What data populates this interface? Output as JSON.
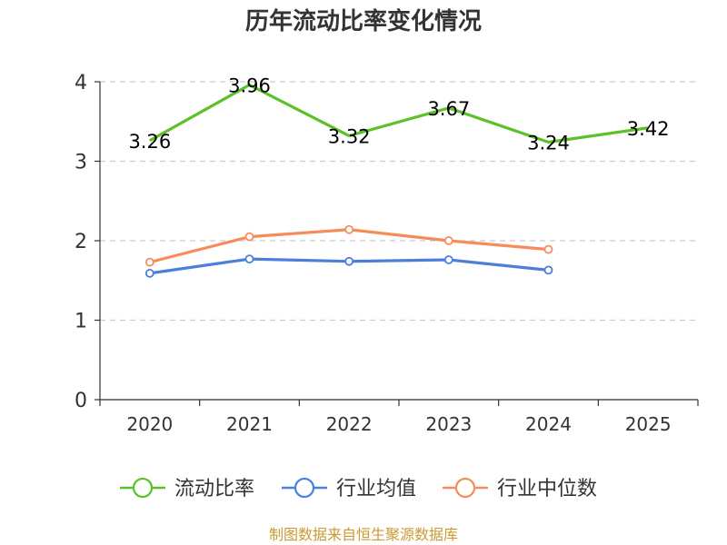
{
  "chart_data": {
    "type": "line",
    "title": "历年流动比率变化情况",
    "categories": [
      "2020",
      "2021",
      "2022",
      "2023",
      "2024",
      "2025"
    ],
    "ylim": [
      0,
      4
    ],
    "yticks": [
      0,
      1,
      2,
      3,
      4
    ],
    "ytick_labels": [
      "0",
      "1",
      "2",
      "3",
      "4"
    ],
    "grid": true,
    "legend_position": "bottom",
    "series": [
      {
        "name": "流动比率",
        "color": "#5cc128",
        "values": [
          3.26,
          3.96,
          3.32,
          3.67,
          3.24,
          3.42
        ],
        "labels": [
          "3.26",
          "3.96",
          "3.32",
          "3.67",
          "3.24",
          "3.42"
        ],
        "markers": false
      },
      {
        "name": "行业均值",
        "color": "#4a7fdb",
        "values": [
          1.59,
          1.77,
          1.74,
          1.76,
          1.63,
          null
        ],
        "markers": true
      },
      {
        "name": "行业中位数",
        "color": "#f58c5a",
        "values": [
          1.73,
          2.05,
          2.14,
          2.0,
          1.89,
          null
        ],
        "markers": true
      }
    ],
    "source": "制图数据来自恒生聚源数据库"
  }
}
